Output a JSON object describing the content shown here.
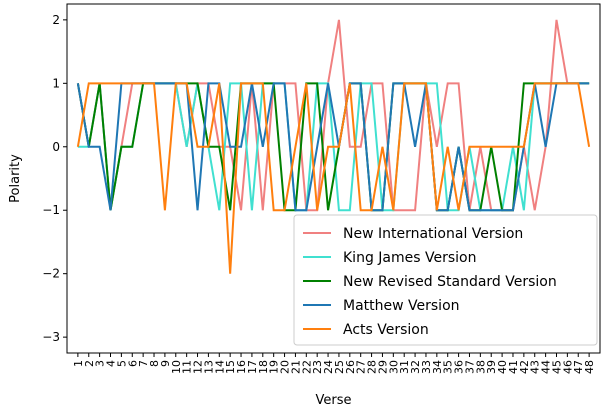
{
  "chart_data": {
    "type": "line",
    "title": "",
    "xlabel": "Verse",
    "ylabel": "Polarity",
    "ylim": [
      -3.25,
      2.25
    ],
    "yticks": [
      -3,
      -2,
      -1,
      0,
      1,
      2
    ],
    "x": [
      1,
      2,
      3,
      4,
      5,
      6,
      7,
      8,
      9,
      10,
      11,
      12,
      13,
      14,
      15,
      16,
      17,
      18,
      19,
      20,
      21,
      22,
      23,
      24,
      25,
      26,
      27,
      28,
      29,
      30,
      31,
      32,
      33,
      34,
      35,
      36,
      37,
      38,
      39,
      40,
      41,
      42,
      43,
      44,
      45,
      46,
      47,
      48
    ],
    "grid": false,
    "legend_position": "lower-right",
    "series": [
      {
        "name": "New International Version",
        "color": "#f08080",
        "values": [
          1,
          0,
          1,
          -1,
          0,
          1,
          1,
          1,
          1,
          1,
          0,
          1,
          1,
          0,
          0,
          -1,
          1,
          -1,
          1,
          1,
          1,
          -1,
          -1,
          1,
          2,
          0,
          0,
          1,
          1,
          -1,
          -1,
          -1,
          1,
          0,
          1,
          1,
          -1,
          0,
          -1,
          -1,
          -1,
          0,
          -1,
          0,
          2,
          1,
          1,
          1
        ]
      },
      {
        "name": "King James Version",
        "color": "#40e0d0",
        "values": [
          0,
          0,
          1,
          -1,
          0,
          0,
          1,
          1,
          1,
          1,
          0,
          1,
          0,
          -1,
          1,
          1,
          -1,
          1,
          1,
          1,
          -1,
          -1,
          1,
          1,
          -1,
          -1,
          1,
          1,
          -1,
          -1,
          1,
          1,
          1,
          1,
          -1,
          -1,
          0,
          -1,
          -1,
          -1,
          0,
          -1,
          1,
          1,
          1,
          1,
          1,
          1
        ]
      },
      {
        "name": "New Revised Standard Version",
        "color": "#008000",
        "values": [
          1,
          0,
          1,
          -1,
          0,
          0,
          1,
          1,
          1,
          1,
          1,
          1,
          0,
          0,
          -1,
          1,
          1,
          1,
          1,
          -1,
          -1,
          1,
          1,
          -1,
          0,
          1,
          1,
          -1,
          -1,
          1,
          1,
          1,
          1,
          -1,
          -1,
          0,
          -1,
          -1,
          0,
          -1,
          -1,
          1,
          1,
          1,
          1,
          1,
          1,
          1
        ]
      },
      {
        "name": "Matthew Version",
        "color": "#1f77b4",
        "values": [
          1,
          0,
          0,
          -1,
          1,
          1,
          1,
          1,
          1,
          1,
          1,
          -1,
          1,
          1,
          0,
          0,
          1,
          0,
          1,
          1,
          -1,
          -1,
          0,
          1,
          0,
          1,
          1,
          -1,
          -1,
          1,
          1,
          0,
          1,
          -1,
          -1,
          0,
          -1,
          -1,
          -1,
          -1,
          -1,
          0,
          1,
          0,
          1,
          1,
          1,
          1
        ]
      },
      {
        "name": "Acts Version",
        "color": "#ff7f0e",
        "values": [
          0,
          1,
          1,
          1,
          1,
          1,
          1,
          1,
          -1,
          1,
          1,
          0,
          0,
          1,
          -2,
          1,
          1,
          1,
          -1,
          -1,
          0,
          1,
          -1,
          0,
          0,
          1,
          -1,
          -1,
          0,
          -1,
          1,
          1,
          1,
          -1,
          0,
          -1,
          0,
          0,
          0,
          0,
          0,
          0,
          1,
          1,
          1,
          1,
          1,
          0
        ]
      }
    ]
  }
}
